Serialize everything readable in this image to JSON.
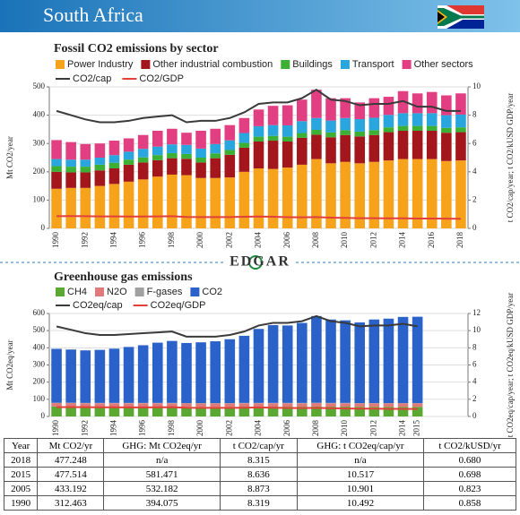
{
  "header": {
    "title": "South Africa"
  },
  "logo": "EDGAR",
  "chart_data": [
    {
      "type": "bar",
      "stacked": true,
      "title": "Fossil CO2 emissions by sector",
      "y_label": "Mt CO2/year",
      "y2_label": "t CO2/cap/year; t CO2/kUSD GDP/year",
      "categories": [
        "1990",
        null,
        "1992",
        null,
        "1994",
        null,
        "1996",
        null,
        "1998",
        null,
        "2000",
        null,
        "2002",
        null,
        "2004",
        null,
        "2006",
        null,
        "2008",
        null,
        "2010",
        null,
        "2012",
        null,
        "2014",
        null,
        "2016",
        null,
        "2018"
      ],
      "ylim": [
        0,
        500
      ],
      "yticks": [
        0,
        100,
        200,
        300,
        400,
        500
      ],
      "y2lim": [
        0,
        10
      ],
      "y2ticks": [
        0,
        2,
        4,
        6,
        8,
        10
      ],
      "grid": true,
      "series": [
        {
          "name": "Power Industry",
          "color": "#f7a21b",
          "values": [
            140,
            143,
            143,
            150,
            157,
            165,
            173,
            183,
            190,
            188,
            178,
            178,
            180,
            200,
            212,
            210,
            215,
            225,
            245,
            230,
            235,
            230,
            235,
            240,
            245,
            245,
            245,
            238,
            240
          ]
        },
        {
          "name": "Other industrial combustion",
          "color": "#a3171c",
          "values": [
            60,
            55,
            55,
            55,
            55,
            60,
            60,
            58,
            58,
            58,
            55,
            70,
            80,
            85,
            95,
            100,
            92,
            95,
            86,
            92,
            95,
            95,
            95,
            100,
            100,
            100,
            100,
            100,
            100
          ]
        },
        {
          "name": "Buildings",
          "color": "#3cb034",
          "values": [
            20,
            20,
            20,
            20,
            20,
            18,
            18,
            18,
            18,
            17,
            17,
            17,
            17,
            17,
            17,
            17,
            17,
            17,
            17,
            17,
            17,
            17,
            17,
            17,
            17,
            17,
            17,
            17,
            17
          ]
        },
        {
          "name": "Transport",
          "color": "#2aa6df",
          "values": [
            25,
            25,
            25,
            25,
            27,
            28,
            30,
            30,
            31,
            32,
            32,
            33,
            34,
            35,
            37,
            38,
            40,
            42,
            42,
            42,
            43,
            44,
            44,
            44,
            45,
            45,
            45,
            45,
            45
          ]
        },
        {
          "name": "Other sectors",
          "color": "#e23f83",
          "values": [
            67,
            62,
            55,
            50,
            51,
            47,
            49,
            56,
            55,
            43,
            63,
            54,
            54,
            53,
            59,
            68,
            71,
            76,
            100,
            79,
            70,
            59,
            69,
            64,
            78,
            70,
            75,
            70,
            75
          ]
        },
        {
          "name": "CO2/cap",
          "color": "#3a3a3a",
          "axis": "y2",
          "values": [
            8.3,
            8.0,
            7.7,
            7.5,
            7.5,
            7.6,
            7.8,
            7.9,
            8.0,
            7.5,
            7.6,
            7.6,
            7.8,
            8.2,
            8.8,
            8.9,
            8.9,
            9.2,
            9.8,
            9.1,
            9.0,
            8.7,
            8.8,
            8.8,
            9.0,
            8.6,
            8.6,
            8.3,
            8.3
          ]
        },
        {
          "name": "CO2/GDP",
          "color": "#e2403a",
          "axis": "y2",
          "values": [
            0.86,
            0.87,
            0.86,
            0.85,
            0.85,
            0.84,
            0.84,
            0.85,
            0.86,
            0.81,
            0.8,
            0.8,
            0.8,
            0.82,
            0.84,
            0.82,
            0.79,
            0.78,
            0.8,
            0.76,
            0.74,
            0.72,
            0.72,
            0.71,
            0.71,
            0.7,
            0.7,
            0.69,
            0.68
          ]
        }
      ]
    },
    {
      "type": "bar",
      "stacked": true,
      "title": "Greenhouse gas emissions",
      "y_label": "Mt CO2eq/year",
      "y2_label": "t CO2eq/cap/year; t CO2eq/kUSD GDP/year",
      "categories": [
        "1990",
        null,
        "1992",
        null,
        "1994",
        null,
        "1996",
        null,
        "1998",
        null,
        "2000",
        null,
        "2002",
        null,
        "2004",
        null,
        "2006",
        null,
        "2008",
        null,
        "2010",
        null,
        "2012",
        null,
        "2014",
        "2015"
      ],
      "ylim": [
        0,
        600
      ],
      "yticks": [
        0,
        100,
        200,
        300,
        400,
        500,
        600
      ],
      "y2lim": [
        0,
        12
      ],
      "y2ticks": [
        0,
        2,
        4,
        6,
        8,
        10,
        12
      ],
      "grid": true,
      "series": [
        {
          "name": "CH4",
          "color": "#5aa832",
          "values": [
            58,
            58,
            57,
            57,
            57,
            57,
            57,
            57,
            57,
            56,
            56,
            56,
            56,
            57,
            57,
            57,
            57,
            57,
            58,
            57,
            57,
            56,
            56,
            56,
            56,
            56
          ]
        },
        {
          "name": "N2O",
          "color": "#e07a7a",
          "values": [
            20,
            20,
            20,
            20,
            20,
            20,
            20,
            20,
            20,
            20,
            20,
            20,
            20,
            20,
            20,
            20,
            20,
            20,
            20,
            20,
            20,
            20,
            20,
            20,
            20,
            20
          ]
        },
        {
          "name": "F-gases",
          "color": "#a0a0a0",
          "values": [
            2,
            2,
            2,
            2,
            2,
            2,
            2,
            2,
            2,
            2,
            2,
            2,
            2,
            2,
            2,
            2,
            2,
            2,
            2,
            2,
            2,
            2,
            2,
            2,
            2,
            2
          ]
        },
        {
          "name": "CO2",
          "color": "#2a62c9",
          "values": [
            314,
            310,
            306,
            309,
            316,
            326,
            336,
            351,
            361,
            350,
            354,
            360,
            372,
            391,
            431,
            453,
            451,
            466,
            505,
            486,
            481,
            470,
            487,
            492,
            502,
            503
          ]
        },
        {
          "name": "CO2eq/cap",
          "color": "#3a3a3a",
          "axis": "y2",
          "values": [
            10.49,
            10.1,
            9.7,
            9.5,
            9.5,
            9.6,
            9.7,
            9.8,
            9.9,
            9.3,
            9.3,
            9.3,
            9.5,
            9.9,
            10.6,
            10.9,
            10.9,
            11.1,
            11.7,
            11.1,
            10.9,
            10.5,
            10.6,
            10.6,
            10.8,
            10.5
          ]
        },
        {
          "name": "CO2eq/GDP",
          "color": "#e2403a",
          "axis": "y2",
          "values": [
            1.08,
            1.09,
            1.08,
            1.07,
            1.07,
            1.06,
            1.06,
            1.07,
            1.08,
            1.02,
            1.01,
            1.0,
            1.0,
            1.02,
            1.05,
            1.02,
            0.99,
            0.98,
            1.0,
            0.96,
            0.93,
            0.91,
            0.91,
            0.89,
            0.89,
            0.87
          ]
        }
      ]
    }
  ],
  "table": {
    "columns": [
      "Year",
      "Mt CO2/yr",
      "GHG: Mt CO2eq/yr",
      "t CO2/cap/yr",
      "GHG: t CO2eq/cap/yr",
      "t CO2/kUSD/yr"
    ],
    "rows": [
      [
        "2018",
        "477.248",
        "n/a",
        "8.315",
        "n/a",
        "0.680"
      ],
      [
        "2015",
        "477.514",
        "581.471",
        "8.636",
        "10.517",
        "0.698"
      ],
      [
        "2005",
        "433.192",
        "532.182",
        "8.873",
        "10.901",
        "0.823"
      ],
      [
        "1990",
        "312.463",
        "394.075",
        "8.319",
        "10.492",
        "0.858"
      ]
    ]
  }
}
